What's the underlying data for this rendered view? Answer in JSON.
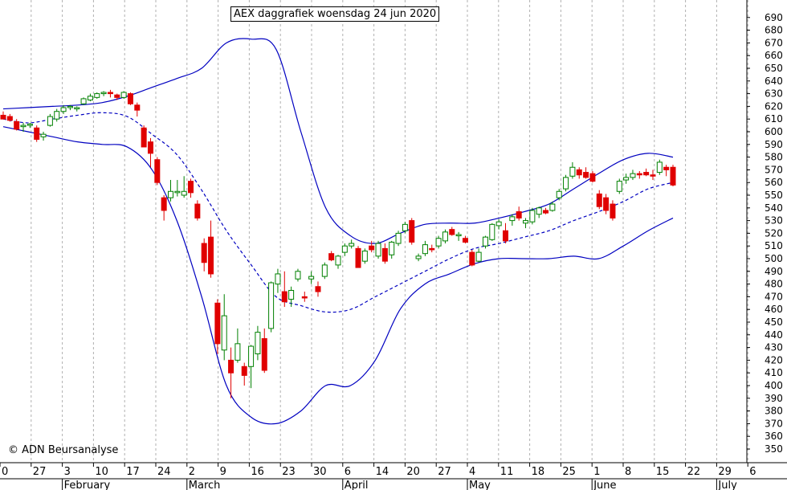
{
  "chart_data": {
    "type": "candlestick",
    "title": "AEX daggrafiek woensdag 24 jun 2020",
    "credit": "© ADN Beursanalyse",
    "ylim": [
      340,
      700
    ],
    "y_ticks": [
      350,
      360,
      370,
      380,
      390,
      400,
      410,
      420,
      430,
      440,
      450,
      460,
      470,
      480,
      490,
      500,
      510,
      520,
      530,
      540,
      550,
      560,
      570,
      580,
      590,
      600,
      610,
      620,
      630,
      640,
      650,
      660,
      670,
      680,
      690
    ],
    "x_ticks": [
      "0",
      "27",
      "3",
      "10",
      "17",
      "24",
      "2",
      "9",
      "16",
      "23",
      "30",
      "6",
      "14",
      "20",
      "27",
      "4",
      "11",
      "18",
      "25",
      "1",
      "8",
      "15",
      "22",
      "29",
      "6"
    ],
    "months": [
      "February",
      "March",
      "April",
      "May",
      "June",
      "July"
    ],
    "colors": {
      "up": "#008000",
      "down": "#e00000",
      "bands": "#0000c0",
      "grid": "#b0b0b0"
    },
    "bollinger": {
      "upper": [
        618,
        619,
        620,
        621,
        623,
        628,
        635,
        642,
        650,
        670,
        673,
        665,
        600,
        540,
        518,
        512,
        520,
        527,
        528,
        528,
        532,
        537,
        543,
        555,
        567,
        578,
        583,
        580
      ],
      "middle": [
        610,
        607,
        610,
        613,
        615,
        612,
        598,
        582,
        554,
        522,
        495,
        470,
        463,
        458,
        460,
        470,
        480,
        490,
        500,
        508,
        512,
        517,
        522,
        530,
        537,
        545,
        555,
        560
      ],
      "lower": [
        604,
        600,
        596,
        592,
        590,
        588,
        570,
        530,
        470,
        400,
        375,
        370,
        380,
        400,
        400,
        420,
        460,
        480,
        488,
        496,
        500,
        500,
        500,
        502,
        500,
        510,
        522,
        532
      ]
    },
    "candles": [
      {
        "o": 613,
        "h": 616,
        "l": 610,
        "c": 610
      },
      {
        "o": 612,
        "h": 614,
        "l": 608,
        "c": 609
      },
      {
        "o": 608,
        "h": 610,
        "l": 601,
        "c": 602
      },
      {
        "o": 604,
        "h": 607,
        "l": 600,
        "c": 605
      },
      {
        "o": 605,
        "h": 607,
        "l": 603,
        "c": 606
      },
      {
        "o": 603,
        "h": 605,
        "l": 592,
        "c": 594
      },
      {
        "o": 596,
        "h": 600,
        "l": 593,
        "c": 598
      },
      {
        "o": 605,
        "h": 614,
        "l": 604,
        "c": 612
      },
      {
        "o": 610,
        "h": 618,
        "l": 608,
        "c": 616
      },
      {
        "o": 616,
        "h": 621,
        "l": 614,
        "c": 619
      },
      {
        "o": 619,
        "h": 621,
        "l": 617,
        "c": 620
      },
      {
        "o": 618,
        "h": 620,
        "l": 616,
        "c": 619
      },
      {
        "o": 622,
        "h": 627,
        "l": 621,
        "c": 626
      },
      {
        "o": 625,
        "h": 630,
        "l": 624,
        "c": 628
      },
      {
        "o": 627,
        "h": 631,
        "l": 626,
        "c": 630
      },
      {
        "o": 630,
        "h": 632,
        "l": 628,
        "c": 631
      },
      {
        "o": 631,
        "h": 633,
        "l": 627,
        "c": 630
      },
      {
        "o": 629,
        "h": 630,
        "l": 625,
        "c": 627
      },
      {
        "o": 627,
        "h": 632,
        "l": 626,
        "c": 631
      },
      {
        "o": 630,
        "h": 631,
        "l": 621,
        "c": 622
      },
      {
        "o": 621,
        "h": 623,
        "l": 612,
        "c": 617
      },
      {
        "o": 603,
        "h": 605,
        "l": 588,
        "c": 588
      },
      {
        "o": 592,
        "h": 595,
        "l": 572,
        "c": 583
      },
      {
        "o": 578,
        "h": 580,
        "l": 558,
        "c": 560
      },
      {
        "o": 548,
        "h": 550,
        "l": 530,
        "c": 538
      },
      {
        "o": 548,
        "h": 562,
        "l": 545,
        "c": 553
      },
      {
        "o": 552,
        "h": 562,
        "l": 549,
        "c": 553
      },
      {
        "o": 550,
        "h": 565,
        "l": 548,
        "c": 553
      },
      {
        "o": 561,
        "h": 563,
        "l": 548,
        "c": 552
      },
      {
        "o": 543,
        "h": 546,
        "l": 530,
        "c": 532
      },
      {
        "o": 512,
        "h": 516,
        "l": 490,
        "c": 497
      },
      {
        "o": 517,
        "h": 530,
        "l": 485,
        "c": 488
      },
      {
        "o": 465,
        "h": 468,
        "l": 425,
        "c": 433
      },
      {
        "o": 428,
        "h": 472,
        "l": 420,
        "c": 455
      },
      {
        "o": 420,
        "h": 430,
        "l": 390,
        "c": 410
      },
      {
        "o": 420,
        "h": 445,
        "l": 418,
        "c": 433
      },
      {
        "o": 415,
        "h": 418,
        "l": 400,
        "c": 408
      },
      {
        "o": 415,
        "h": 432,
        "l": 398,
        "c": 431
      },
      {
        "o": 425,
        "h": 447,
        "l": 420,
        "c": 442
      },
      {
        "o": 437,
        "h": 445,
        "l": 410,
        "c": 412
      },
      {
        "o": 445,
        "h": 482,
        "l": 442,
        "c": 481
      },
      {
        "o": 480,
        "h": 492,
        "l": 473,
        "c": 488
      },
      {
        "o": 474,
        "h": 490,
        "l": 462,
        "c": 466
      },
      {
        "o": 468,
        "h": 478,
        "l": 462,
        "c": 475
      },
      {
        "o": 484,
        "h": 492,
        "l": 482,
        "c": 490
      },
      {
        "o": 470,
        "h": 474,
        "l": 466,
        "c": 469
      },
      {
        "o": 484,
        "h": 490,
        "l": 480,
        "c": 486
      },
      {
        "o": 478,
        "h": 482,
        "l": 470,
        "c": 474
      },
      {
        "o": 486,
        "h": 497,
        "l": 484,
        "c": 495
      },
      {
        "o": 504,
        "h": 506,
        "l": 498,
        "c": 499
      },
      {
        "o": 495,
        "h": 503,
        "l": 492,
        "c": 502
      },
      {
        "o": 505,
        "h": 512,
        "l": 502,
        "c": 510
      },
      {
        "o": 510,
        "h": 515,
        "l": 508,
        "c": 512
      },
      {
        "o": 508,
        "h": 510,
        "l": 496,
        "c": 493
      },
      {
        "o": 498,
        "h": 508,
        "l": 496,
        "c": 506
      },
      {
        "o": 510,
        "h": 514,
        "l": 505,
        "c": 507
      },
      {
        "o": 502,
        "h": 514,
        "l": 500,
        "c": 512
      },
      {
        "o": 508,
        "h": 512,
        "l": 496,
        "c": 498
      },
      {
        "o": 503,
        "h": 514,
        "l": 500,
        "c": 513
      },
      {
        "o": 512,
        "h": 522,
        "l": 510,
        "c": 520
      },
      {
        "o": 522,
        "h": 529,
        "l": 520,
        "c": 527
      },
      {
        "o": 530,
        "h": 532,
        "l": 511,
        "c": 513
      },
      {
        "o": 500,
        "h": 504,
        "l": 498,
        "c": 502
      },
      {
        "o": 504,
        "h": 514,
        "l": 502,
        "c": 511
      },
      {
        "o": 508,
        "h": 511,
        "l": 505,
        "c": 507
      },
      {
        "o": 510,
        "h": 518,
        "l": 508,
        "c": 516
      },
      {
        "o": 514,
        "h": 523,
        "l": 512,
        "c": 521
      },
      {
        "o": 523,
        "h": 525,
        "l": 518,
        "c": 519
      },
      {
        "o": 518,
        "h": 521,
        "l": 514,
        "c": 519
      },
      {
        "o": 516,
        "h": 518,
        "l": 512,
        "c": 513
      },
      {
        "o": 505,
        "h": 507,
        "l": 494,
        "c": 495
      },
      {
        "o": 498,
        "h": 508,
        "l": 497,
        "c": 505
      },
      {
        "o": 510,
        "h": 518,
        "l": 508,
        "c": 517
      },
      {
        "o": 515,
        "h": 528,
        "l": 514,
        "c": 527
      },
      {
        "o": 526,
        "h": 531,
        "l": 523,
        "c": 529
      },
      {
        "o": 522,
        "h": 528,
        "l": 512,
        "c": 514
      },
      {
        "o": 530,
        "h": 535,
        "l": 526,
        "c": 533
      },
      {
        "o": 537,
        "h": 541,
        "l": 530,
        "c": 532
      },
      {
        "o": 528,
        "h": 532,
        "l": 524,
        "c": 530
      },
      {
        "o": 529,
        "h": 540,
        "l": 527,
        "c": 538
      },
      {
        "o": 535,
        "h": 541,
        "l": 532,
        "c": 540
      },
      {
        "o": 538,
        "h": 540,
        "l": 535,
        "c": 536
      },
      {
        "o": 538,
        "h": 545,
        "l": 537,
        "c": 543
      },
      {
        "o": 548,
        "h": 555,
        "l": 546,
        "c": 553
      },
      {
        "o": 555,
        "h": 566,
        "l": 553,
        "c": 564
      },
      {
        "o": 565,
        "h": 576,
        "l": 563,
        "c": 572
      },
      {
        "o": 570,
        "h": 572,
        "l": 563,
        "c": 566
      },
      {
        "o": 568,
        "h": 572,
        "l": 563,
        "c": 564
      },
      {
        "o": 567,
        "h": 569,
        "l": 560,
        "c": 561
      },
      {
        "o": 551,
        "h": 554,
        "l": 539,
        "c": 541
      },
      {
        "o": 548,
        "h": 551,
        "l": 535,
        "c": 538
      },
      {
        "o": 543,
        "h": 546,
        "l": 530,
        "c": 532
      },
      {
        "o": 553,
        "h": 563,
        "l": 551,
        "c": 561
      },
      {
        "o": 562,
        "h": 567,
        "l": 559,
        "c": 564
      },
      {
        "o": 564,
        "h": 570,
        "l": 562,
        "c": 567
      },
      {
        "o": 567,
        "h": 569,
        "l": 563,
        "c": 566
      },
      {
        "o": 568,
        "h": 571,
        "l": 565,
        "c": 566
      },
      {
        "o": 566,
        "h": 570,
        "l": 562,
        "c": 565
      },
      {
        "o": 568,
        "h": 578,
        "l": 566,
        "c": 576
      },
      {
        "o": 572,
        "h": 574,
        "l": 565,
        "c": 570
      },
      {
        "o": 572,
        "h": 574,
        "l": 557,
        "c": 558
      }
    ]
  }
}
